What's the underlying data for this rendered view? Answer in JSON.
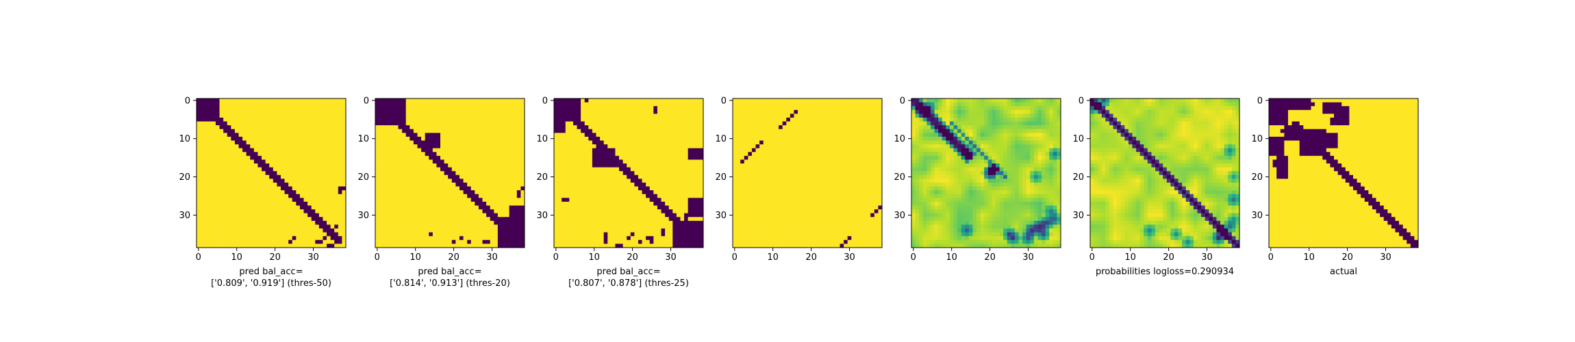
{
  "chart_data": [
    {
      "type": "heatmap",
      "panel": "pred-thres-50",
      "grid_size": 39,
      "colormap": "viridis",
      "xticks": [
        "0",
        "10",
        "20",
        "30"
      ],
      "yticks": [
        "0",
        "10",
        "20",
        "30"
      ],
      "xlabel": "pred bal_acc=\n['0.809', '0.919'] (thres-50)",
      "zero_mask": {
        "blocks": [
          [
            0,
            5,
            0,
            5
          ]
        ],
        "band": [
          [
            5,
            37,
            1.2
          ]
        ],
        "points": [
          [
            23,
            37
          ],
          [
            24,
            37
          ],
          [
            23,
            38
          ],
          [
            33,
            36
          ],
          [
            34,
            35
          ],
          [
            35,
            34
          ],
          [
            36,
            33
          ],
          [
            37,
            32
          ],
          [
            37,
            24
          ],
          [
            36,
            25
          ],
          [
            37,
            31
          ],
          [
            38,
            34
          ],
          [
            38,
            35
          ]
        ]
      }
    },
    {
      "type": "heatmap",
      "panel": "pred-thres-20",
      "grid_size": 39,
      "colormap": "viridis",
      "xticks": [
        "0",
        "10",
        "20",
        "30"
      ],
      "yticks": [
        "0",
        "10",
        "20",
        "30"
      ],
      "xlabel": "pred bal_acc=\n['0.814', '0.913'] (thres-20)",
      "zero_mask": {
        "blocks": [
          [
            0,
            6,
            0,
            7
          ],
          [
            9,
            12,
            13,
            16
          ],
          [
            31,
            38,
            32,
            38
          ],
          [
            28,
            31,
            35,
            38
          ]
        ],
        "band": [
          [
            6,
            37,
            1.4
          ]
        ],
        "points": [
          [
            23,
            38
          ],
          [
            24,
            37
          ],
          [
            25,
            37
          ],
          [
            35,
            14
          ],
          [
            36,
            22
          ],
          [
            37,
            20
          ],
          [
            37,
            24
          ],
          [
            37,
            28
          ],
          [
            37,
            29
          ]
        ]
      }
    },
    {
      "type": "heatmap",
      "panel": "pred-thres-25",
      "grid_size": 39,
      "colormap": "viridis",
      "xticks": [
        "0",
        "10",
        "20",
        "30"
      ],
      "yticks": [
        "0",
        "10",
        "20",
        "30"
      ],
      "xlabel": "pred bal_acc=\n['0.807', '0.878'] (thres-25)",
      "zero_mask": {
        "blocks": [
          [
            0,
            5,
            0,
            6
          ],
          [
            6,
            8,
            0,
            2
          ],
          [
            13,
            17,
            10,
            15
          ],
          [
            32,
            38,
            31,
            38
          ],
          [
            26,
            30,
            35,
            38
          ],
          [
            13,
            15,
            35,
            38
          ]
        ],
        "band": [
          [
            5,
            37,
            1.6
          ]
        ],
        "points": [
          [
            0,
            8
          ],
          [
            2,
            26
          ],
          [
            3,
            26
          ],
          [
            26,
            2
          ],
          [
            26,
            3
          ],
          [
            35,
            13
          ],
          [
            36,
            13
          ],
          [
            37,
            13
          ],
          [
            35,
            20
          ],
          [
            36,
            19
          ],
          [
            36,
            25
          ],
          [
            37,
            25
          ],
          [
            34,
            28
          ],
          [
            35,
            28
          ],
          [
            37,
            22
          ],
          [
            36,
            24
          ],
          [
            30,
            34
          ],
          [
            29,
            35
          ],
          [
            31,
            34
          ],
          [
            38,
            16
          ],
          [
            38,
            17
          ]
        ]
      }
    },
    {
      "type": "heatmap",
      "panel": "pred-sparse",
      "grid_size": 39,
      "colormap": "viridis",
      "xticks": [
        "0",
        "10",
        "20",
        "30"
      ],
      "yticks": [
        "0",
        "10",
        "20",
        "30"
      ],
      "xlabel": "",
      "zero_mask": {
        "blocks": [],
        "band": [],
        "points": [
          [
            3,
            16
          ],
          [
            4,
            15
          ],
          [
            5,
            14
          ],
          [
            6,
            13
          ],
          [
            7,
            12
          ],
          [
            11,
            7
          ],
          [
            12,
            6
          ],
          [
            13,
            5
          ],
          [
            14,
            4
          ],
          [
            15,
            3
          ],
          [
            16,
            2
          ],
          [
            28,
            38
          ],
          [
            29,
            37
          ],
          [
            30,
            36
          ],
          [
            36,
            30
          ],
          [
            37,
            29
          ],
          [
            38,
            28
          ]
        ]
      }
    },
    {
      "type": "heatmap",
      "panel": "probabilities-raw",
      "grid_size": 39,
      "colormap": "viridis",
      "xticks": [
        "0",
        "10",
        "20",
        "30"
      ],
      "yticks": [
        "0",
        "10",
        "20",
        "30"
      ],
      "xlabel": "",
      "probability_map": {
        "main_band": {
          "start": 0,
          "end": 15,
          "width": 1.8,
          "strength": 0.9
        },
        "secondary_band": {
          "start": 8,
          "end": 22,
          "offset": -4,
          "width": 1.2,
          "strength": 0.6
        },
        "hotspots": [
          [
            19,
            20,
            0.95
          ],
          [
            18,
            21,
            0.8
          ],
          [
            33,
            33,
            0.8
          ],
          [
            34,
            31,
            0.7
          ],
          [
            32,
            35,
            0.7
          ],
          [
            36,
            30,
            0.6
          ],
          [
            35,
            34,
            0.7
          ],
          [
            31,
            37,
            0.6
          ],
          [
            29,
            36,
            0.5
          ],
          [
            3,
            2,
            0.8
          ],
          [
            2,
            4,
            0.7
          ],
          [
            14,
            37,
            0.5
          ],
          [
            20,
            32,
            0.4
          ],
          [
            34,
            14,
            0.5
          ],
          [
            36,
            26,
            0.5
          ],
          [
            35,
            25,
            0.5
          ]
        ],
        "noise_amplitude": 0.22
      }
    },
    {
      "type": "heatmap",
      "panel": "probabilities",
      "grid_size": 39,
      "colormap": "viridis",
      "xticks": [
        "0",
        "10",
        "20",
        "30"
      ],
      "yticks": [
        "0",
        "10",
        "20",
        "30"
      ],
      "xlabel": "probabilities logloss=0.290934",
      "probability_map": {
        "main_band": {
          "start": 0,
          "end": 38,
          "width": 1.3,
          "strength": 1.0
        },
        "secondary_band": null,
        "hotspots": [
          [
            35,
            34,
            0.6
          ],
          [
            36,
            33,
            0.5
          ],
          [
            33,
            36,
            0.5
          ],
          [
            26,
            37,
            0.45
          ],
          [
            37,
            25,
            0.45
          ],
          [
            34,
            15,
            0.4
          ],
          [
            35,
            22,
            0.45
          ],
          [
            31,
            37,
            0.4
          ],
          [
            0,
            3,
            0.7
          ],
          [
            2,
            0,
            0.6
          ],
          [
            13,
            36,
            0.4
          ],
          [
            20,
            37,
            0.35
          ]
        ],
        "noise_amplitude": 0.18
      }
    },
    {
      "type": "heatmap",
      "panel": "actual",
      "grid_size": 39,
      "colormap": "viridis",
      "xticks": [
        "0",
        "10",
        "20",
        "30"
      ],
      "yticks": [
        "0",
        "10",
        "20",
        "30"
      ],
      "xlabel": "actual",
      "zero_mask": {
        "blocks": [
          [
            0,
            2,
            0,
            10
          ],
          [
            0,
            6,
            0,
            4
          ],
          [
            1,
            3,
            14,
            18
          ],
          [
            2,
            6,
            17,
            20
          ],
          [
            8,
            14,
            8,
            14
          ],
          [
            7,
            10,
            4,
            7
          ],
          [
            10,
            14,
            0,
            3
          ],
          [
            15,
            20,
            2,
            4
          ],
          [
            9,
            12,
            15,
            17
          ]
        ],
        "band": [
          [
            6,
            38,
            1.4
          ]
        ],
        "points": [
          [
            0,
            10
          ],
          [
            1,
            11
          ],
          [
            5,
            16
          ],
          [
            6,
            16
          ],
          [
            8,
            3
          ],
          [
            9,
            4
          ],
          [
            16,
            1
          ],
          [
            17,
            1
          ],
          [
            36,
            37
          ],
          [
            37,
            37
          ],
          [
            38,
            38
          ]
        ]
      }
    }
  ]
}
